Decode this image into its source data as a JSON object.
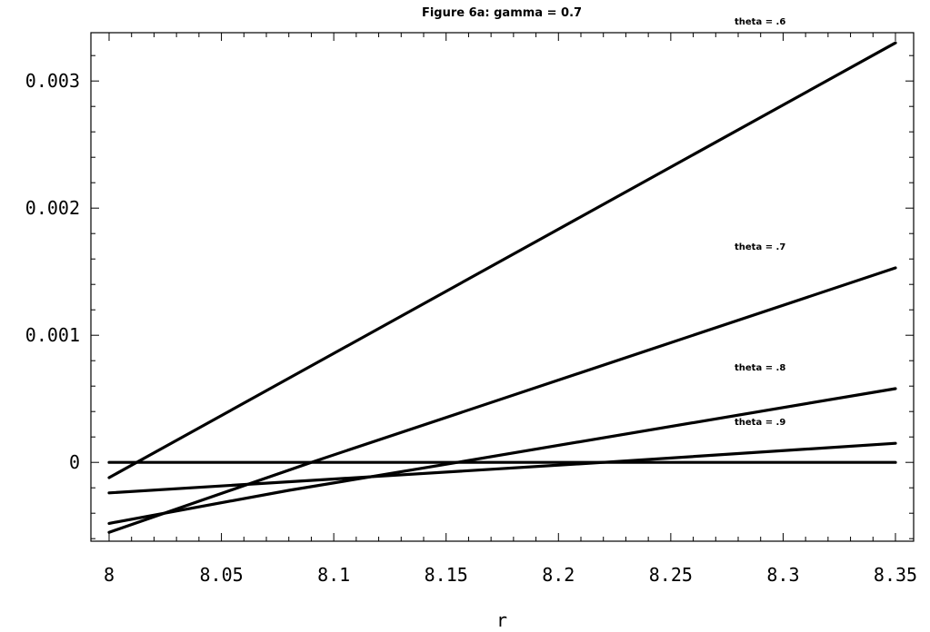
{
  "chart_data": {
    "type": "line",
    "title": "Figure 6a: gamma = 0.7",
    "xlabel": "r",
    "ylabel": "",
    "xlim": [
      8.0,
      8.35
    ],
    "ylim": [
      -0.00062,
      0.00338
    ],
    "x_ticks": [
      8.0,
      8.05,
      8.1,
      8.15,
      8.2,
      8.25,
      8.3,
      8.35
    ],
    "x_tick_labels": [
      "8",
      "8.05",
      "8.1",
      "8.15",
      "8.2",
      "8.25",
      "8.3",
      "8.35"
    ],
    "y_ticks": [
      0,
      0.001,
      0.002,
      0.003
    ],
    "y_tick_labels": [
      "0",
      "0.001",
      "0.002",
      "0.003"
    ],
    "grid": false,
    "series": [
      {
        "name": "theta = .6",
        "x": [
          8.0,
          8.35
        ],
        "y": [
          -0.00012,
          0.0033
        ]
      },
      {
        "name": "theta = .7",
        "x": [
          8.0,
          8.09,
          8.35
        ],
        "y": [
          -0.00055,
          0.0,
          0.00153
        ]
      },
      {
        "name": "theta = .8",
        "x": [
          8.0,
          8.08,
          8.155,
          8.35
        ],
        "y": [
          -0.00048,
          -0.00022,
          0.0,
          0.00058
        ]
      },
      {
        "name": "theta = .9",
        "x": [
          8.0,
          8.22,
          8.35
        ],
        "y": [
          -0.00024,
          0.0,
          0.00015
        ]
      },
      {
        "name": "",
        "x": [
          8.0,
          8.35
        ],
        "y": [
          0,
          0
        ]
      }
    ]
  }
}
